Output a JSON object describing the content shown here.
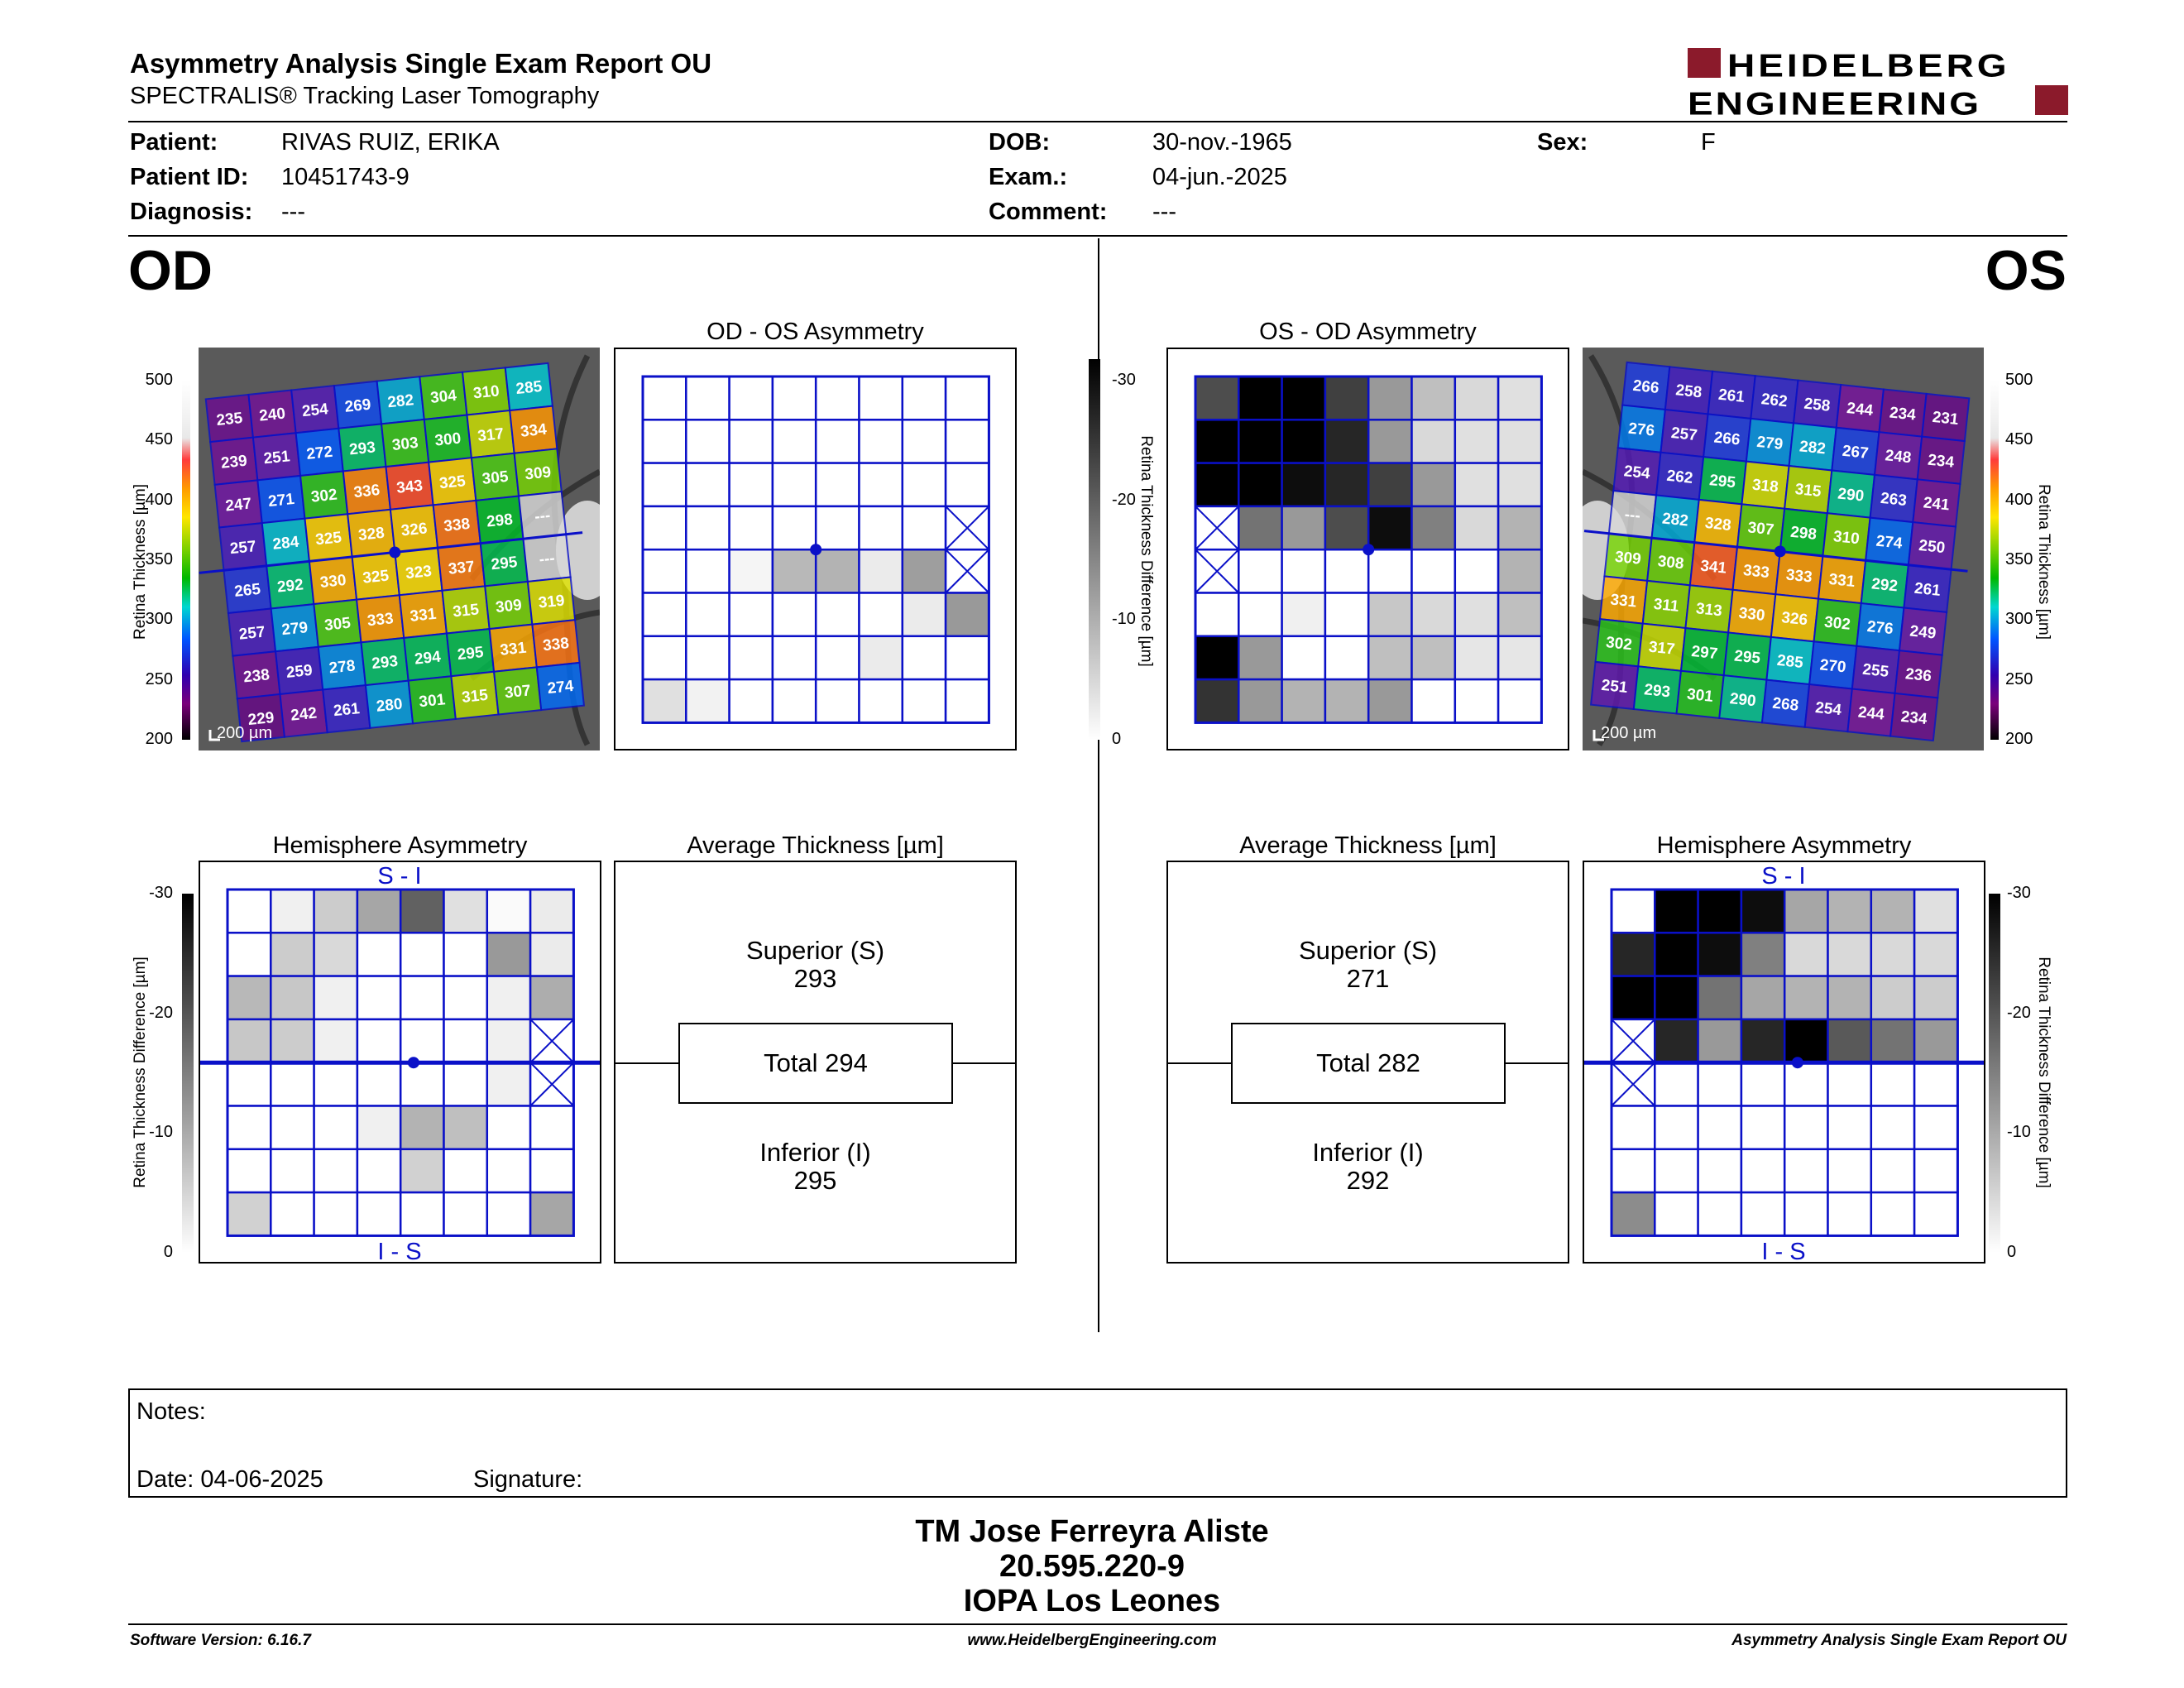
{
  "header": {
    "title": "Asymmetry Analysis Single Exam Report OU",
    "subtitle": "SPECTRALIS® Tracking Laser Tomography",
    "logo_line1": "HEIDELBERG",
    "logo_line2": "ENGINEERING"
  },
  "patient": {
    "patient_label": "Patient:",
    "patient_value": "RIVAS RUIZ, ERIKA",
    "id_label": "Patient ID:",
    "id_value": "10451743-9",
    "diagnosis_label": "Diagnosis:",
    "diagnosis_value": "---",
    "dob_label": "DOB:",
    "dob_value": "30-nov.-1965",
    "exam_label": "Exam.:",
    "exam_value": "04-jun.-2025",
    "comment_label": "Comment:",
    "comment_value": "---",
    "sex_label": "Sex:",
    "sex_value": "F"
  },
  "od": {
    "label": "OD",
    "asym_title": "OD - OS Asymmetry",
    "hemi_title": "Hemisphere Asymmetry",
    "avg_title": "Average Thickness [µm]",
    "scale_text": "200 µm",
    "superior_label": "Superior (S)",
    "superior_value": "293",
    "total_label": "Total 294",
    "inferior_label": "Inferior (I)",
    "inferior_value": "295",
    "hemi_top": "S - I",
    "hemi_bottom": "I - S",
    "thickness": [
      [
        "235",
        "240",
        "254",
        "269",
        "282",
        "304",
        "310",
        "285"
      ],
      [
        "239",
        "251",
        "272",
        "293",
        "303",
        "300",
        "317",
        "334"
      ],
      [
        "247",
        "271",
        "302",
        "336",
        "343",
        "325",
        "305",
        "309"
      ],
      [
        "257",
        "284",
        "325",
        "328",
        "326",
        "338",
        "298",
        "---"
      ],
      [
        "265",
        "292",
        "330",
        "325",
        "323",
        "337",
        "295",
        "---"
      ],
      [
        "257",
        "279",
        "305",
        "333",
        "331",
        "315",
        "309",
        "319"
      ],
      [
        "238",
        "259",
        "278",
        "293",
        "294",
        "295",
        "331",
        "338"
      ],
      [
        "229",
        "242",
        "261",
        "280",
        "301",
        "315",
        "307",
        "274"
      ]
    ],
    "asym_gray": [
      [
        0,
        0,
        0,
        0,
        0,
        0,
        0,
        0
      ],
      [
        0,
        0,
        0,
        0,
        0,
        0,
        0,
        0
      ],
      [
        0,
        0,
        0,
        0,
        0,
        0,
        0,
        0
      ],
      [
        0,
        0,
        0,
        0,
        0,
        0,
        0,
        -1
      ],
      [
        0,
        0,
        4,
        28,
        30,
        8,
        38,
        -1
      ],
      [
        0,
        0,
        0,
        0,
        0,
        0,
        8,
        40
      ],
      [
        0,
        0,
        0,
        0,
        0,
        8,
        0,
        0
      ],
      [
        12,
        5,
        0,
        0,
        0,
        0,
        0,
        0
      ]
    ],
    "hemi_gray": [
      [
        0,
        6,
        20,
        35,
        62,
        12,
        2,
        8
      ],
      [
        0,
        20,
        15,
        0,
        0,
        0,
        40,
        8
      ],
      [
        28,
        22,
        6,
        0,
        0,
        0,
        6,
        32
      ],
      [
        22,
        20,
        6,
        0,
        0,
        0,
        6,
        -1
      ],
      [
        0,
        0,
        0,
        0,
        0,
        0,
        6,
        -1
      ],
      [
        0,
        0,
        0,
        6,
        30,
        25,
        0,
        0
      ],
      [
        0,
        0,
        0,
        0,
        18,
        0,
        0,
        0
      ],
      [
        18,
        0,
        0,
        0,
        0,
        0,
        0,
        35
      ]
    ]
  },
  "os": {
    "label": "OS",
    "asym_title": "OS - OD Asymmetry",
    "hemi_title": "Hemisphere Asymmetry",
    "avg_title": "Average Thickness [µm]",
    "scale_text": "200 µm",
    "superior_label": "Superior (S)",
    "superior_value": "271",
    "total_label": "Total 282",
    "inferior_label": "Inferior (I)",
    "inferior_value": "292",
    "hemi_top": "S - I",
    "hemi_bottom": "I - S",
    "thickness": [
      [
        "266",
        "258",
        "261",
        "262",
        "258",
        "244",
        "234",
        "231"
      ],
      [
        "276",
        "257",
        "266",
        "279",
        "282",
        "267",
        "248",
        "234"
      ],
      [
        "254",
        "262",
        "295",
        "318",
        "315",
        "290",
        "263",
        "241"
      ],
      [
        "---",
        "282",
        "328",
        "307",
        "298",
        "310",
        "274",
        "250"
      ],
      [
        "309",
        "308",
        "341",
        "333",
        "333",
        "331",
        "292",
        "261"
      ],
      [
        "331",
        "311",
        "313",
        "330",
        "326",
        "302",
        "276",
        "249"
      ],
      [
        "302",
        "317",
        "297",
        "295",
        "285",
        "270",
        "255",
        "236"
      ],
      [
        "251",
        "293",
        "301",
        "290",
        "268",
        "254",
        "244",
        "234"
      ]
    ],
    "asym_gray": [
      [
        70,
        100,
        100,
        75,
        40,
        25,
        15,
        12
      ],
      [
        100,
        100,
        100,
        85,
        40,
        15,
        12,
        12
      ],
      [
        100,
        100,
        95,
        85,
        75,
        40,
        12,
        12
      ],
      [
        -1,
        55,
        40,
        70,
        95,
        50,
        15,
        30
      ],
      [
        -1,
        0,
        0,
        0,
        0,
        0,
        0,
        30
      ],
      [
        0,
        0,
        6,
        0,
        22,
        15,
        12,
        25
      ],
      [
        100,
        40,
        0,
        0,
        25,
        25,
        10,
        10
      ],
      [
        80,
        40,
        30,
        30,
        40,
        0,
        0,
        0
      ]
    ],
    "hemi_gray": [
      [
        0,
        100,
        100,
        95,
        35,
        30,
        30,
        12
      ],
      [
        85,
        100,
        95,
        50,
        15,
        15,
        15,
        15
      ],
      [
        100,
        100,
        55,
        35,
        30,
        30,
        20,
        20
      ],
      [
        -1,
        85,
        40,
        85,
        100,
        65,
        55,
        40
      ],
      [
        -1,
        0,
        0,
        0,
        0,
        0,
        0,
        0
      ],
      [
        0,
        0,
        0,
        0,
        0,
        0,
        0,
        0
      ],
      [
        0,
        0,
        0,
        0,
        0,
        0,
        0,
        0
      ],
      [
        45,
        0,
        0,
        0,
        0,
        0,
        0,
        0
      ]
    ]
  },
  "scales": {
    "thickness_ticks": [
      "500",
      "450",
      "400",
      "350",
      "300",
      "250",
      "200"
    ],
    "thickness_label": "Retina Thickness [µm]",
    "diff_ticks": [
      "-30",
      "-20",
      "-10",
      "0"
    ],
    "diff_label": "Retina Thickness Difference [µm]"
  },
  "notes": {
    "notes_label": "Notes:",
    "date_label": "Date: 04-06-2025",
    "signature_label": "Signature:"
  },
  "signature_block": {
    "line1": "TM Jose Ferreyra Aliste",
    "line2": "20.595.220-9",
    "line3": "IOPA Los Leones"
  },
  "footer": {
    "left": "Software Version: 6.16.7",
    "center": "www.HeidelbergEngineering.com",
    "right": "Asymmetry Analysis Single Exam Report OU"
  }
}
